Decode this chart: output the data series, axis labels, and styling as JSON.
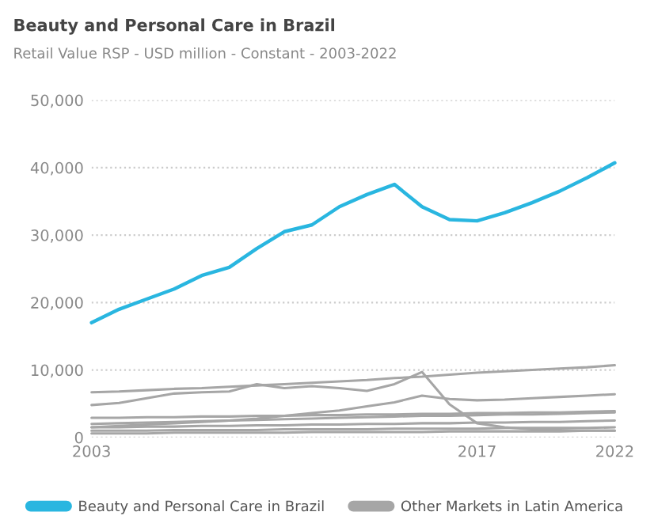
{
  "chart_data": {
    "type": "line",
    "title": "Beauty and Personal Care in Brazil",
    "subtitle": "Retail Value RSP - USD million - Constant - 2003-2022",
    "x": [
      2003,
      2004,
      2005,
      2006,
      2007,
      2008,
      2009,
      2010,
      2011,
      2012,
      2013,
      2014,
      2015,
      2016,
      2017,
      2018,
      2019,
      2020,
      2021,
      2022
    ],
    "series": [
      {
        "name": "Beauty and Personal Care in Brazil",
        "color": "#29b6e0",
        "values": [
          17000,
          19000,
          20500,
          22000,
          24000,
          25200,
          28000,
          30500,
          31500,
          34200,
          36000,
          37500,
          34200,
          32300,
          32100,
          33300,
          34800,
          36500,
          38500,
          40700
        ]
      },
      {
        "name": "Other Markets in Latin America",
        "color": "#a6a6a6",
        "values": [
          6700,
          6800,
          7000,
          7200,
          7300,
          7500,
          7700,
          7900,
          8100,
          8300,
          8500,
          8800,
          9000,
          9300,
          9600,
          9800,
          10000,
          10200,
          10400,
          10700
        ]
      },
      {
        "color": "#a6a6a6",
        "values": [
          4800,
          5100,
          5800,
          6500,
          6700,
          6800,
          7900,
          7300,
          7600,
          7300,
          6900,
          7900,
          9700,
          4900,
          2100,
          1500,
          1200,
          1100,
          1000,
          1000
        ]
      },
      {
        "color": "#a6a6a6",
        "values": [
          1500,
          1700,
          1900,
          2100,
          2300,
          2500,
          2800,
          3200,
          3600,
          4000,
          4600,
          5200,
          6200,
          5700,
          5500,
          5600,
          5800,
          6000,
          6200,
          6400
        ]
      },
      {
        "color": "#a6a6a6",
        "values": [
          2900,
          2900,
          3000,
          3000,
          3100,
          3100,
          3200,
          3200,
          3300,
          3300,
          3400,
          3400,
          3500,
          3500,
          3600,
          3600,
          3700,
          3700,
          3800,
          3900
        ]
      },
      {
        "color": "#a6a6a6",
        "values": [
          2000,
          2100,
          2200,
          2300,
          2400,
          2500,
          2600,
          2700,
          2800,
          2900,
          3000,
          3100,
          3200,
          3200,
          3300,
          3400,
          3400,
          3500,
          3600,
          3700
        ]
      },
      {
        "color": "#a6a6a6",
        "values": [
          1500,
          1500,
          1600,
          1600,
          1700,
          1700,
          1800,
          1800,
          1900,
          1900,
          2000,
          2000,
          2100,
          2100,
          2200,
          2200,
          2300,
          2300,
          2400,
          2500
        ]
      },
      {
        "color": "#a6a6a6",
        "values": [
          1000,
          1000,
          1000,
          1100,
          1100,
          1100,
          1100,
          1200,
          1200,
          1200,
          1200,
          1300,
          1300,
          1300,
          1300,
          1400,
          1400,
          1400,
          1400,
          1500
        ]
      },
      {
        "color": "#a6a6a6",
        "values": [
          600,
          600,
          600,
          700,
          700,
          700,
          700,
          700,
          800,
          800,
          800,
          800,
          800,
          900,
          900,
          900,
          900,
          900,
          1000,
          1000
        ]
      }
    ],
    "xlim": [
      2003,
      2022
    ],
    "xticks": [
      2003,
      2017,
      2022
    ],
    "ylim": [
      0,
      50000
    ],
    "yticks": [
      {
        "value": 0,
        "label": "0"
      },
      {
        "value": 10000,
        "label": "10,000"
      },
      {
        "value": 20000,
        "label": "20,000"
      },
      {
        "value": 30000,
        "label": "30,000"
      },
      {
        "value": 40000,
        "label": "40,000"
      },
      {
        "value": 50000,
        "label": "50,000"
      }
    ],
    "grid": "y",
    "legend": "bottom",
    "marker": "none",
    "line_style": "solid"
  }
}
